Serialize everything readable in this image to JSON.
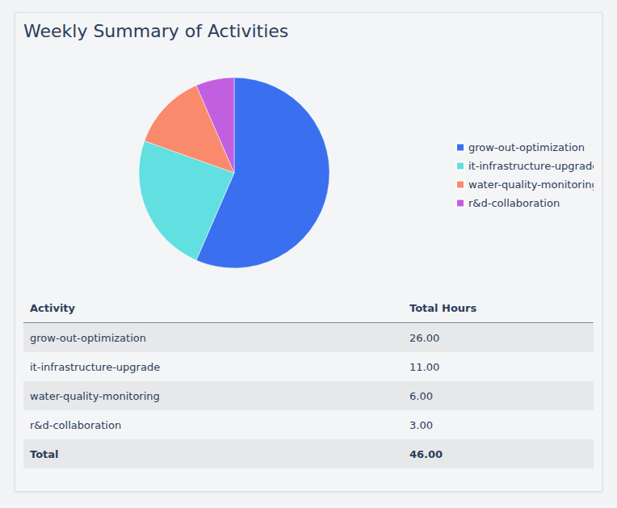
{
  "chart_data": {
    "type": "pie",
    "title": "Weekly Summary of Activities",
    "categories": [
      "grow-out-optimization",
      "it-infrastructure-upgrade",
      "water-quality-monitoring",
      "r&d-collaboration"
    ],
    "values": [
      26,
      11,
      6,
      3
    ],
    "colors": [
      "#3a6ff0",
      "#62dfe0",
      "#f98a6b",
      "#c25fe0"
    ],
    "legend": "right"
  },
  "table": {
    "header": [
      "Activity",
      "Total Hours"
    ],
    "rows": [
      [
        "grow-out-optimization",
        "26.00"
      ],
      [
        "it-infrastructure-upgrade",
        "11.00"
      ],
      [
        "water-quality-monitoring",
        "6.00"
      ],
      [
        "r&d-collaboration",
        "3.00"
      ]
    ],
    "total": [
      "Total",
      "46.00"
    ]
  }
}
